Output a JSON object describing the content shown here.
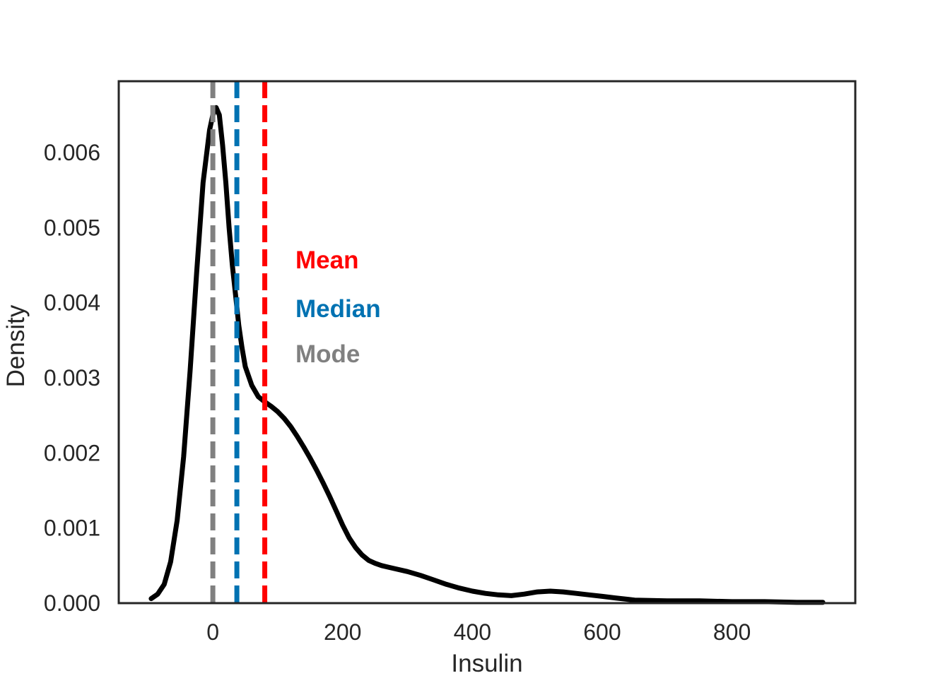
{
  "chart_data": {
    "type": "line",
    "title": "",
    "xlabel": "Insulin",
    "ylabel": "Density",
    "xlim": [
      -145,
      990
    ],
    "ylim": [
      0,
      0.00695
    ],
    "xticks": [
      0,
      200,
      400,
      600,
      800
    ],
    "xtick_labels": [
      "0",
      "200",
      "400",
      "600",
      "800"
    ],
    "yticks": [
      0.0,
      0.001,
      0.002,
      0.003,
      0.004,
      0.005,
      0.006
    ],
    "ytick_labels": [
      "0.000",
      "0.001",
      "0.002",
      "0.003",
      "0.004",
      "0.005",
      "0.006"
    ],
    "grid": false,
    "series": [
      {
        "color": "#000000",
        "x": [
          -95,
          -85,
          -75,
          -65,
          -55,
          -45,
          -35,
          -25,
          -15,
          -5,
          0,
          5,
          10,
          15,
          20,
          25,
          30,
          35,
          40,
          45,
          50,
          60,
          70,
          80,
          90,
          100,
          110,
          120,
          130,
          140,
          150,
          160,
          170,
          180,
          190,
          200,
          210,
          220,
          230,
          240,
          250,
          260,
          270,
          280,
          300,
          320,
          340,
          360,
          380,
          400,
          420,
          440,
          460,
          480,
          500,
          520,
          540,
          560,
          580,
          600,
          620,
          650,
          700,
          750,
          800,
          850,
          900,
          940
        ],
        "y": [
          6e-05,
          0.00012,
          0.00025,
          0.00055,
          0.0011,
          0.00195,
          0.0031,
          0.0044,
          0.0056,
          0.0063,
          0.0065,
          0.0066,
          0.0065,
          0.0061,
          0.0056,
          0.005,
          0.0045,
          0.0041,
          0.0037,
          0.0034,
          0.00315,
          0.0029,
          0.00275,
          0.00268,
          0.00262,
          0.00255,
          0.00246,
          0.00235,
          0.00222,
          0.00208,
          0.00193,
          0.00177,
          0.0016,
          0.00142,
          0.00123,
          0.00104,
          0.00087,
          0.00074,
          0.00064,
          0.00057,
          0.00053,
          0.0005,
          0.00048,
          0.00046,
          0.00042,
          0.00037,
          0.00031,
          0.00025,
          0.0002,
          0.00016,
          0.00013,
          0.00011,
          0.0001,
          0.00012,
          0.00015,
          0.00016,
          0.00015,
          0.00013,
          0.00011,
          9e-05,
          7e-05,
          4e-05,
          3e-05,
          3e-05,
          2e-05,
          2e-05,
          1e-05,
          1e-05
        ]
      }
    ],
    "reference_lines": [
      {
        "name": "Mode",
        "x": 0,
        "color": "#808080"
      },
      {
        "name": "Median",
        "x": 37,
        "color": "#0072B2"
      },
      {
        "name": "Mean",
        "x": 80,
        "color": "#ff0000"
      }
    ],
    "legend": {
      "placement": "center-left",
      "entries": [
        {
          "label": "Mean",
          "color": "#ff0000"
        },
        {
          "label": "Median",
          "color": "#0072B2"
        },
        {
          "label": "Mode",
          "color": "#808080"
        }
      ]
    }
  }
}
